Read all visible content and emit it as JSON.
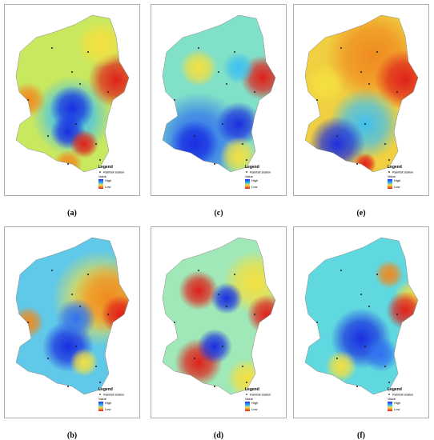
{
  "panels": [
    {
      "label": "(a)",
      "legend": {
        "title": "Legend",
        "station": "Rainfall station",
        "value": "Value",
        "high": "High",
        "low": "Low"
      }
    },
    {
      "label": "(c)",
      "legend": {
        "title": "Legend",
        "station": "Rainfall station",
        "value": "Value",
        "high": "High",
        "low": "Low"
      }
    },
    {
      "label": "(e)",
      "legend": {
        "title": "Legend",
        "station": "Rainfall station",
        "value": "Value",
        "high": "High",
        "low": "Low"
      }
    },
    {
      "label": "(b)",
      "legend": {
        "title": "Legend",
        "station": "Rainfall station",
        "value": "Value",
        "high": "High",
        "low": "Low"
      }
    },
    {
      "label": "(d)",
      "legend": {
        "title": "Legend",
        "station": "Rainfall station",
        "value": "Value",
        "high": "High",
        "low": "Low"
      }
    },
    {
      "label": "(f)",
      "legend": {
        "title": "Legend",
        "station": "Rainfall station",
        "value": "Value",
        "high": "High",
        "low": "Low"
      }
    }
  ]
}
